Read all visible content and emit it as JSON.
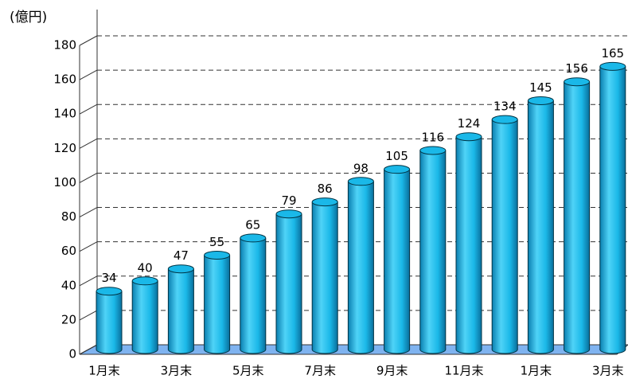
{
  "chart_data": {
    "type": "bar",
    "y_label": "(億円)",
    "categories": [
      "1月末",
      null,
      "3月末",
      null,
      "5月末",
      null,
      "7月末",
      null,
      "9月末",
      null,
      "11月末",
      null,
      "1月末",
      null,
      "3月末"
    ],
    "values": [
      34,
      40,
      47,
      55,
      65,
      79,
      86,
      98,
      105,
      116,
      124,
      134,
      145,
      156,
      165
    ],
    "color": "#1ab8e8",
    "ylim": [
      0,
      180
    ],
    "yticks": [
      0,
      20,
      40,
      60,
      80,
      100,
      120,
      140,
      160,
      180
    ],
    "grid": true
  }
}
